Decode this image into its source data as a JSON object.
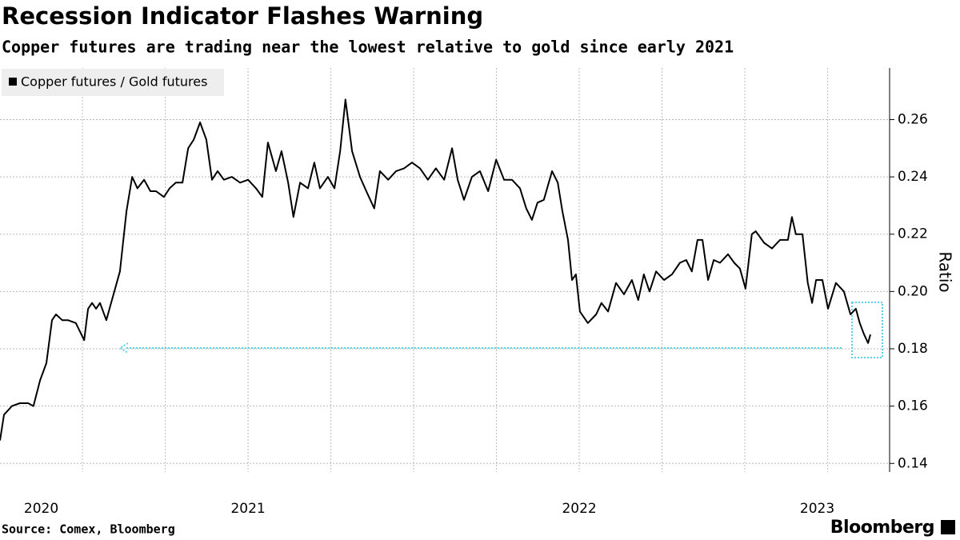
{
  "chart_data": {
    "type": "line",
    "title": "Recession Indicator Flashes Warning",
    "subtitle": "Copper futures are trading near the lowest relative to gold since early 2021",
    "y_label": "Ratio",
    "source": "Source: Comex, Bloomberg",
    "brand": "Bloomberg",
    "x_labels": [
      "2020",
      "2021",
      "2022",
      "2023"
    ],
    "xlim": [
      2020.751,
      2023.437
    ],
    "xgrid": [
      2021,
      2021.25,
      2021.5,
      2021.75,
      2022,
      2022.25,
      2022.5,
      2022.75,
      2023,
      2023.25
    ],
    "ylim": [
      0.137,
      0.278
    ],
    "yticks": [
      0.14,
      0.16,
      0.18,
      {
        "value": 0.2,
        "label": "0.20"
      },
      0.22,
      0.24,
      0.26
    ],
    "grid": true,
    "legend": "top-left",
    "x": [
      2020.751,
      2020.763,
      2020.787,
      2020.811,
      2020.836,
      2020.852,
      2020.872,
      2020.891,
      2020.908,
      2020.92,
      2020.939,
      2020.956,
      2020.98,
      2021.005,
      2021.017,
      2021.029,
      2021.041,
      2021.053,
      2021.072,
      2021.089,
      2021.113,
      2021.133,
      2021.15,
      2021.166,
      2021.186,
      2021.205,
      2021.222,
      2021.246,
      2021.263,
      2021.282,
      2021.302,
      2021.319,
      2021.336,
      2021.355,
      2021.374,
      2021.391,
      2021.408,
      2021.427,
      2021.451,
      2021.476,
      2021.5,
      2021.524,
      2021.543,
      2021.56,
      2021.584,
      2021.601,
      2021.621,
      2021.637,
      2021.657,
      2021.681,
      2021.7,
      2021.717,
      2021.741,
      2021.761,
      2021.778,
      2021.794,
      2021.814,
      2021.838,
      2021.857,
      2021.881,
      2021.898,
      2021.923,
      2021.947,
      2021.971,
      2021.995,
      2022.019,
      2022.043,
      2022.067,
      2022.092,
      2022.116,
      2022.133,
      2022.152,
      2022.176,
      2022.2,
      2022.225,
      2022.249,
      2022.273,
      2022.297,
      2022.321,
      2022.34,
      2022.357,
      2022.374,
      2022.393,
      2022.418,
      2022.435,
      2022.449,
      2022.466,
      2022.478,
      2022.49,
      2022.502,
      2022.526,
      2022.551,
      2022.567,
      2022.587,
      2022.611,
      2022.635,
      2022.659,
      2022.678,
      2022.695,
      2022.712,
      2022.732,
      2022.756,
      2022.78,
      2022.804,
      2022.823,
      2022.84,
      2022.857,
      2022.872,
      2022.889,
      2022.906,
      2022.925,
      2022.949,
      2022.968,
      2022.985,
      2023.002,
      2023.021,
      2023.033,
      2023.058,
      2023.082,
      2023.106,
      2023.13,
      2023.142,
      2023.154,
      2023.174,
      2023.19,
      2023.203,
      2023.215,
      2023.234,
      2023.251,
      2023.275,
      2023.299,
      2023.319,
      2023.335,
      2023.347,
      2023.36,
      2023.372,
      2023.379
    ],
    "series": [
      {
        "name": "Copper futures / Gold futures",
        "color": "#000000",
        "values": [
          0.148,
          0.157,
          0.16,
          0.161,
          0.161,
          0.16,
          0.169,
          0.175,
          0.19,
          0.192,
          0.19,
          0.19,
          0.189,
          0.183,
          0.194,
          0.196,
          0.194,
          0.196,
          0.19,
          0.197,
          0.207,
          0.228,
          0.24,
          0.236,
          0.239,
          0.235,
          0.235,
          0.233,
          0.236,
          0.238,
          0.238,
          0.25,
          0.253,
          0.259,
          0.253,
          0.239,
          0.242,
          0.239,
          0.24,
          0.238,
          0.239,
          0.236,
          0.233,
          0.252,
          0.242,
          0.249,
          0.238,
          0.226,
          0.238,
          0.236,
          0.245,
          0.236,
          0.24,
          0.236,
          0.249,
          0.267,
          0.249,
          0.24,
          0.235,
          0.229,
          0.242,
          0.239,
          0.242,
          0.243,
          0.245,
          0.243,
          0.239,
          0.243,
          0.239,
          0.25,
          0.239,
          0.232,
          0.24,
          0.242,
          0.235,
          0.246,
          0.239,
          0.239,
          0.236,
          0.229,
          0.225,
          0.231,
          0.232,
          0.242,
          0.238,
          0.228,
          0.218,
          0.204,
          0.206,
          0.193,
          0.189,
          0.192,
          0.196,
          0.193,
          0.203,
          0.199,
          0.204,
          0.197,
          0.206,
          0.2,
          0.207,
          0.204,
          0.206,
          0.21,
          0.211,
          0.207,
          0.218,
          0.218,
          0.204,
          0.211,
          0.21,
          0.213,
          0.21,
          0.208,
          0.201,
          0.22,
          0.221,
          0.217,
          0.215,
          0.218,
          0.218,
          0.226,
          0.22,
          0.22,
          0.203,
          0.196,
          0.204,
          0.204,
          0.194,
          0.203,
          0.2,
          0.192,
          0.194,
          0.189,
          0.185,
          0.182,
          0.185
        ]
      }
    ]
  }
}
